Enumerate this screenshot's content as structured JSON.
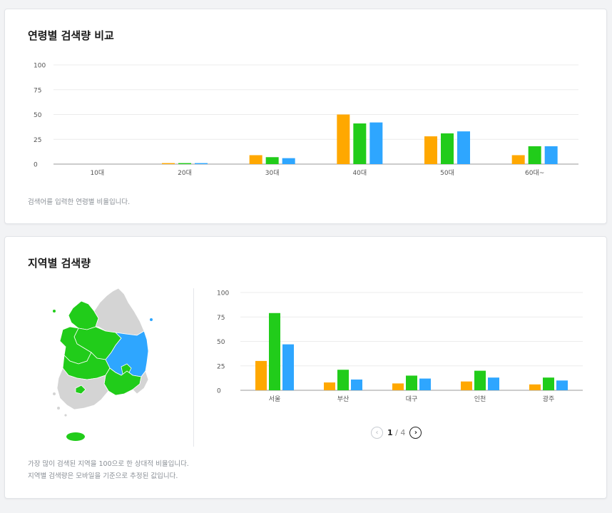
{
  "colors": {
    "orange": "#ffa800",
    "green": "#21cc1a",
    "blue": "#2ea6ff",
    "grid": "#ececec",
    "axis": "#999999",
    "tick": "#555555",
    "map_gray": "#d4d4d4"
  },
  "age_section": {
    "title": "연령별 검색량 비교",
    "note": "검색어를 입력한 연령별 비율입니다."
  },
  "region_section": {
    "title": "지역별 검색량",
    "note1": "가장 많이 검색된 지역을 100으로 한 상대적 비율입니다.",
    "note2": "지역별 검색량은 모바일을 기준으로 추정된 값입니다.",
    "pager": {
      "current": "1",
      "separator": "/",
      "total": "4",
      "prev_icon": "chevron-left-icon",
      "next_icon": "chevron-right-icon"
    }
  },
  "chart_data": [
    {
      "type": "bar",
      "categories": [
        "10대",
        "20대",
        "30대",
        "40대",
        "50대",
        "60대~"
      ],
      "series": [
        {
          "color": "#ffa800",
          "values": [
            0,
            1,
            9,
            50,
            28,
            9
          ]
        },
        {
          "color": "#21cc1a",
          "values": [
            0,
            1,
            7,
            41,
            31,
            18
          ]
        },
        {
          "color": "#2ea6ff",
          "values": [
            0,
            1,
            6,
            42,
            33,
            18
          ]
        }
      ],
      "yticks": [
        0,
        25,
        50,
        75,
        100
      ],
      "ylim": [
        0,
        100
      ],
      "grid": true
    },
    {
      "type": "bar",
      "categories": [
        "서울",
        "부산",
        "대구",
        "인천",
        "광주"
      ],
      "series": [
        {
          "color": "#ffa800",
          "values": [
            30,
            8,
            7,
            9,
            6
          ]
        },
        {
          "color": "#21cc1a",
          "values": [
            79,
            21,
            15,
            20,
            13
          ]
        },
        {
          "color": "#2ea6ff",
          "values": [
            47,
            11,
            12,
            13,
            10
          ]
        }
      ],
      "yticks": [
        0,
        25,
        50,
        75,
        100
      ],
      "ylim": [
        0,
        100
      ],
      "grid": true
    }
  ]
}
